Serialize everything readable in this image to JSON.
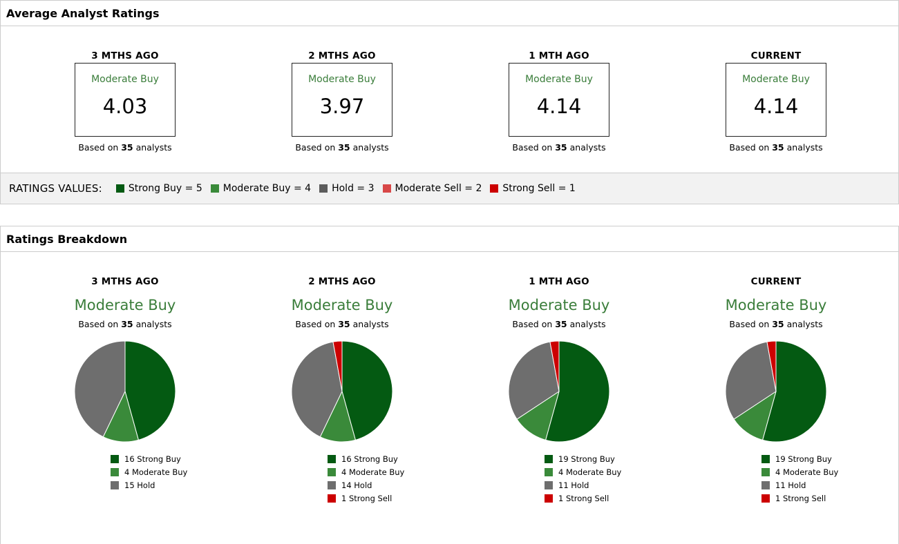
{
  "avg_panel": {
    "title": "Average Analyst Ratings",
    "columns": [
      {
        "period": "3 MTHS AGO",
        "label": "Moderate Buy",
        "value": "4.03",
        "based_prefix": "Based on ",
        "count": "35",
        "based_suffix": " analysts"
      },
      {
        "period": "2 MTHS AGO",
        "label": "Moderate Buy",
        "value": "3.97",
        "based_prefix": "Based on ",
        "count": "35",
        "based_suffix": " analysts"
      },
      {
        "period": "1 MTH AGO",
        "label": "Moderate Buy",
        "value": "4.14",
        "based_prefix": "Based on ",
        "count": "35",
        "based_suffix": " analysts"
      },
      {
        "period": "CURRENT",
        "label": "Moderate Buy",
        "value": "4.14",
        "based_prefix": "Based on ",
        "count": "35",
        "based_suffix": " analysts"
      }
    ],
    "legend": {
      "title": "RATINGS VALUES:",
      "items": [
        {
          "label": "Strong Buy = 5",
          "color": "#045a12"
        },
        {
          "label": "Moderate Buy = 4",
          "color": "#3a8a3a"
        },
        {
          "label": "Hold = 3",
          "color": "#5c5c5c"
        },
        {
          "label": "Moderate Sell = 2",
          "color": "#d84848"
        },
        {
          "label": "Strong Sell = 1",
          "color": "#cc0000"
        }
      ]
    }
  },
  "breakdown_panel": {
    "title": "Ratings Breakdown"
  },
  "colors": {
    "strong_buy": "#045a12",
    "moderate_buy": "#3a8a3a",
    "hold": "#6e6e6e",
    "strong_sell": "#cc0000"
  },
  "chart_data": [
    {
      "type": "pie",
      "title": "3 MTHS AGO",
      "subtitle": "Moderate Buy",
      "based_prefix": "Based on ",
      "count": "35",
      "based_suffix": " analysts",
      "slices": [
        {
          "name": "Strong Buy",
          "value": 16,
          "color": "#045a12",
          "label": "16 Strong Buy"
        },
        {
          "name": "Moderate Buy",
          "value": 4,
          "color": "#3a8a3a",
          "label": "4 Moderate Buy"
        },
        {
          "name": "Hold",
          "value": 15,
          "color": "#6e6e6e",
          "label": "15 Hold"
        }
      ]
    },
    {
      "type": "pie",
      "title": "2 MTHS AGO",
      "subtitle": "Moderate Buy",
      "based_prefix": "Based on ",
      "count": "35",
      "based_suffix": " analysts",
      "slices": [
        {
          "name": "Strong Buy",
          "value": 16,
          "color": "#045a12",
          "label": "16 Strong Buy"
        },
        {
          "name": "Moderate Buy",
          "value": 4,
          "color": "#3a8a3a",
          "label": "4 Moderate Buy"
        },
        {
          "name": "Hold",
          "value": 14,
          "color": "#6e6e6e",
          "label": "14 Hold"
        },
        {
          "name": "Strong Sell",
          "value": 1,
          "color": "#cc0000",
          "label": "1 Strong Sell"
        }
      ]
    },
    {
      "type": "pie",
      "title": "1 MTH AGO",
      "subtitle": "Moderate Buy",
      "based_prefix": "Based on ",
      "count": "35",
      "based_suffix": " analysts",
      "slices": [
        {
          "name": "Strong Buy",
          "value": 19,
          "color": "#045a12",
          "label": "19 Strong Buy"
        },
        {
          "name": "Moderate Buy",
          "value": 4,
          "color": "#3a8a3a",
          "label": "4 Moderate Buy"
        },
        {
          "name": "Hold",
          "value": 11,
          "color": "#6e6e6e",
          "label": "11 Hold"
        },
        {
          "name": "Strong Sell",
          "value": 1,
          "color": "#cc0000",
          "label": "1 Strong Sell"
        }
      ]
    },
    {
      "type": "pie",
      "title": "CURRENT",
      "subtitle": "Moderate Buy",
      "based_prefix": "Based on ",
      "count": "35",
      "based_suffix": " analysts",
      "slices": [
        {
          "name": "Strong Buy",
          "value": 19,
          "color": "#045a12",
          "label": "19 Strong Buy"
        },
        {
          "name": "Moderate Buy",
          "value": 4,
          "color": "#3a8a3a",
          "label": "4 Moderate Buy"
        },
        {
          "name": "Hold",
          "value": 11,
          "color": "#6e6e6e",
          "label": "11 Hold"
        },
        {
          "name": "Strong Sell",
          "value": 1,
          "color": "#cc0000",
          "label": "1 Strong Sell"
        }
      ]
    }
  ]
}
